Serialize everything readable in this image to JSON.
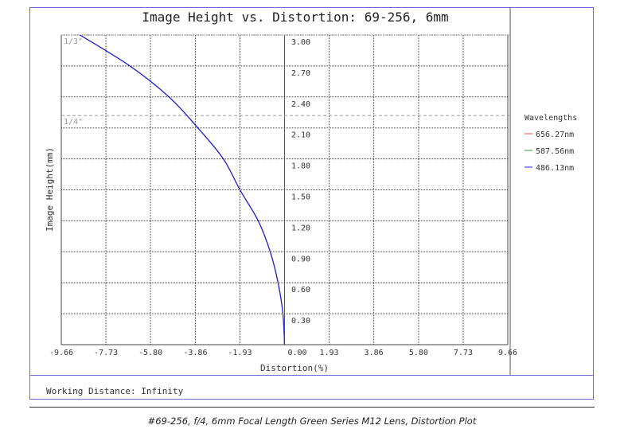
{
  "chart_data": {
    "type": "line",
    "title": "Image Height vs. Distortion: 69-256, 6mm",
    "xlabel": "Distortion(%)",
    "ylabel": "Image Height(mm)",
    "xlim": [
      -9.66,
      9.66
    ],
    "ylim": [
      0,
      3.0
    ],
    "x_ticks": [
      "-9.66",
      "-7.73",
      "-5.80",
      "-3.86",
      "-1.93",
      "0.00",
      "1.93",
      "3.86",
      "5.80",
      "7.73",
      "9.66"
    ],
    "y_ticks": [
      "0.30",
      "0.60",
      "0.90",
      "1.20",
      "1.50",
      "1.80",
      "2.10",
      "2.40",
      "2.70",
      "3.00"
    ],
    "grid": true,
    "legend_title": "Wavelengths",
    "legend_position": "right",
    "reference_lines": [
      {
        "label": "1/3\"",
        "y": 3.0
      },
      {
        "label": "1/4\"",
        "y": 2.22
      }
    ],
    "image_height": [
      0,
      0.3,
      0.6,
      0.9,
      1.2,
      1.5,
      1.8,
      2.1,
      2.4,
      2.7,
      3.0
    ],
    "series": [
      {
        "name": "656.27nm",
        "color": "#ff4444",
        "distortion": [
          0,
          -0.07,
          -0.28,
          -0.62,
          -1.14,
          -1.93,
          -2.65,
          -3.75,
          -5.0,
          -6.69,
          -8.85
        ]
      },
      {
        "name": "587.56nm",
        "color": "#3a9a3a",
        "distortion": [
          0,
          -0.07,
          -0.28,
          -0.62,
          -1.14,
          -1.93,
          -2.65,
          -3.75,
          -5.0,
          -6.69,
          -8.85
        ]
      },
      {
        "name": "486.13nm",
        "color": "#2222ee",
        "distortion": [
          0,
          -0.07,
          -0.28,
          -0.62,
          -1.14,
          -1.93,
          -2.65,
          -3.75,
          -5.0,
          -6.69,
          -8.85
        ]
      }
    ]
  },
  "footer": {
    "working_distance": "Working Distance: Infinity"
  },
  "caption": "#69-256, f/4, 6mm Focal Length Green Series M12 Lens, Distortion Plot"
}
